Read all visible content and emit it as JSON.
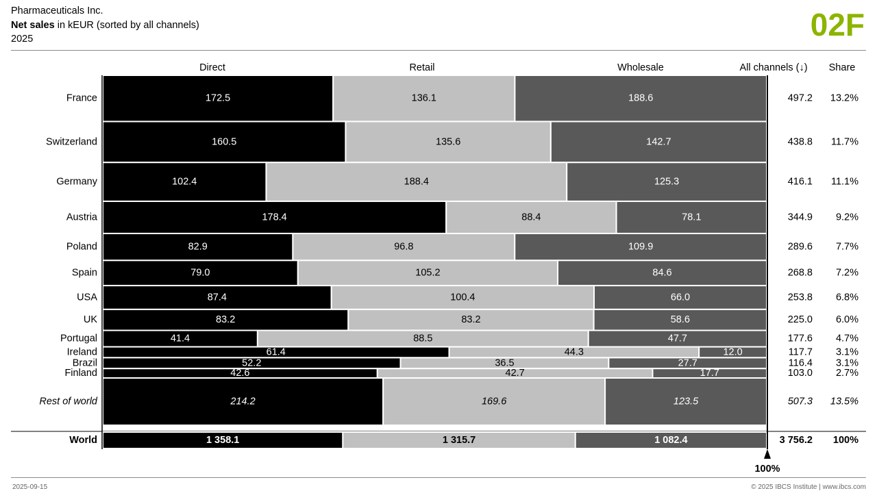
{
  "header": {
    "company": "Pharmaceuticals Inc.",
    "measure": "Net sales",
    "measure_rest": " in kEUR (sorted by all channels)",
    "period": "2025",
    "badge": "02F"
  },
  "footer": {
    "date": "2025-09-15",
    "copyright": "© 2025 IBCS Institute | www.ibcs.com"
  },
  "colors": {
    "accent": "#8cb400",
    "direct": "#000000",
    "retail": "#c0c0c0",
    "wholesale": "#595959"
  },
  "chart_data": {
    "type": "bar",
    "subtype": "marimekko-100-percent-stacked",
    "title": "Net sales in kEUR (sorted by all channels)",
    "series_names": [
      "Direct",
      "Retail",
      "Wholesale"
    ],
    "total_header": "All channels (↓)",
    "share_header": "Share",
    "scale_label": "100%",
    "rows": [
      {
        "label": "France",
        "values": [
          172.5,
          136.1,
          188.6
        ],
        "value_labels": [
          "172.5",
          "136.1",
          "188.6"
        ],
        "total": "497.2",
        "share": "13.2%",
        "share_value": 13.2
      },
      {
        "label": "Switzerland",
        "values": [
          160.5,
          135.6,
          142.7
        ],
        "value_labels": [
          "160.5",
          "135.6",
          "142.7"
        ],
        "total": "438.8",
        "share": "11.7%",
        "share_value": 11.7
      },
      {
        "label": "Germany",
        "values": [
          102.4,
          188.4,
          125.3
        ],
        "value_labels": [
          "102.4",
          "188.4",
          "125.3"
        ],
        "total": "416.1",
        "share": "11.1%",
        "share_value": 11.1
      },
      {
        "label": "Austria",
        "values": [
          178.4,
          88.4,
          78.1
        ],
        "value_labels": [
          "178.4",
          "88.4",
          "78.1"
        ],
        "total": "344.9",
        "share": "9.2%",
        "share_value": 9.2
      },
      {
        "label": "Poland",
        "values": [
          82.9,
          96.8,
          109.9
        ],
        "value_labels": [
          "82.9",
          "96.8",
          "109.9"
        ],
        "total": "289.6",
        "share": "7.7%",
        "share_value": 7.7
      },
      {
        "label": "Spain",
        "values": [
          79.0,
          105.2,
          84.6
        ],
        "value_labels": [
          "79.0",
          "105.2",
          "84.6"
        ],
        "total": "268.8",
        "share": "7.2%",
        "share_value": 7.2
      },
      {
        "label": "USA",
        "values": [
          87.4,
          100.4,
          66.0
        ],
        "value_labels": [
          "87.4",
          "100.4",
          "66.0"
        ],
        "total": "253.8",
        "share": "6.8%",
        "share_value": 6.8
      },
      {
        "label": "UK",
        "values": [
          83.2,
          83.2,
          58.6
        ],
        "value_labels": [
          "83.2",
          "83.2",
          "58.6"
        ],
        "total": "225.0",
        "share": "6.0%",
        "share_value": 6.0
      },
      {
        "label": "Portugal",
        "values": [
          41.4,
          88.5,
          47.7
        ],
        "value_labels": [
          "41.4",
          "88.5",
          "47.7"
        ],
        "total": "177.6",
        "share": "4.7%",
        "share_value": 4.7
      },
      {
        "label": "Ireland",
        "values": [
          61.4,
          44.3,
          12.0
        ],
        "value_labels": [
          "61.4",
          "44.3",
          "12.0"
        ],
        "total": "117.7",
        "share": "3.1%",
        "share_value": 3.1
      },
      {
        "label": "Brazil",
        "values": [
          52.2,
          36.5,
          27.7
        ],
        "value_labels": [
          "52.2",
          "36.5",
          "27.7"
        ],
        "total": "116.4",
        "share": "3.1%",
        "share_value": 3.1
      },
      {
        "label": "Finland",
        "values": [
          42.6,
          42.7,
          17.7
        ],
        "value_labels": [
          "42.6",
          "42.7",
          "17.7"
        ],
        "total": "103.0",
        "share": "2.7%",
        "share_value": 2.7
      },
      {
        "label": "Rest of world",
        "values": [
          214.2,
          169.6,
          123.5
        ],
        "value_labels": [
          "214.2",
          "169.6",
          "123.5"
        ],
        "total": "507.3",
        "share": "13.5%",
        "share_value": 13.5,
        "italic": true
      }
    ],
    "total_row": {
      "label": "World",
      "values": [
        1358.1,
        1315.7,
        1082.4
      ],
      "value_labels": [
        "1 358.1",
        "1 315.7",
        "1 082.4"
      ],
      "total": "3 756.2",
      "share": "100%",
      "share_value": 100
    }
  }
}
